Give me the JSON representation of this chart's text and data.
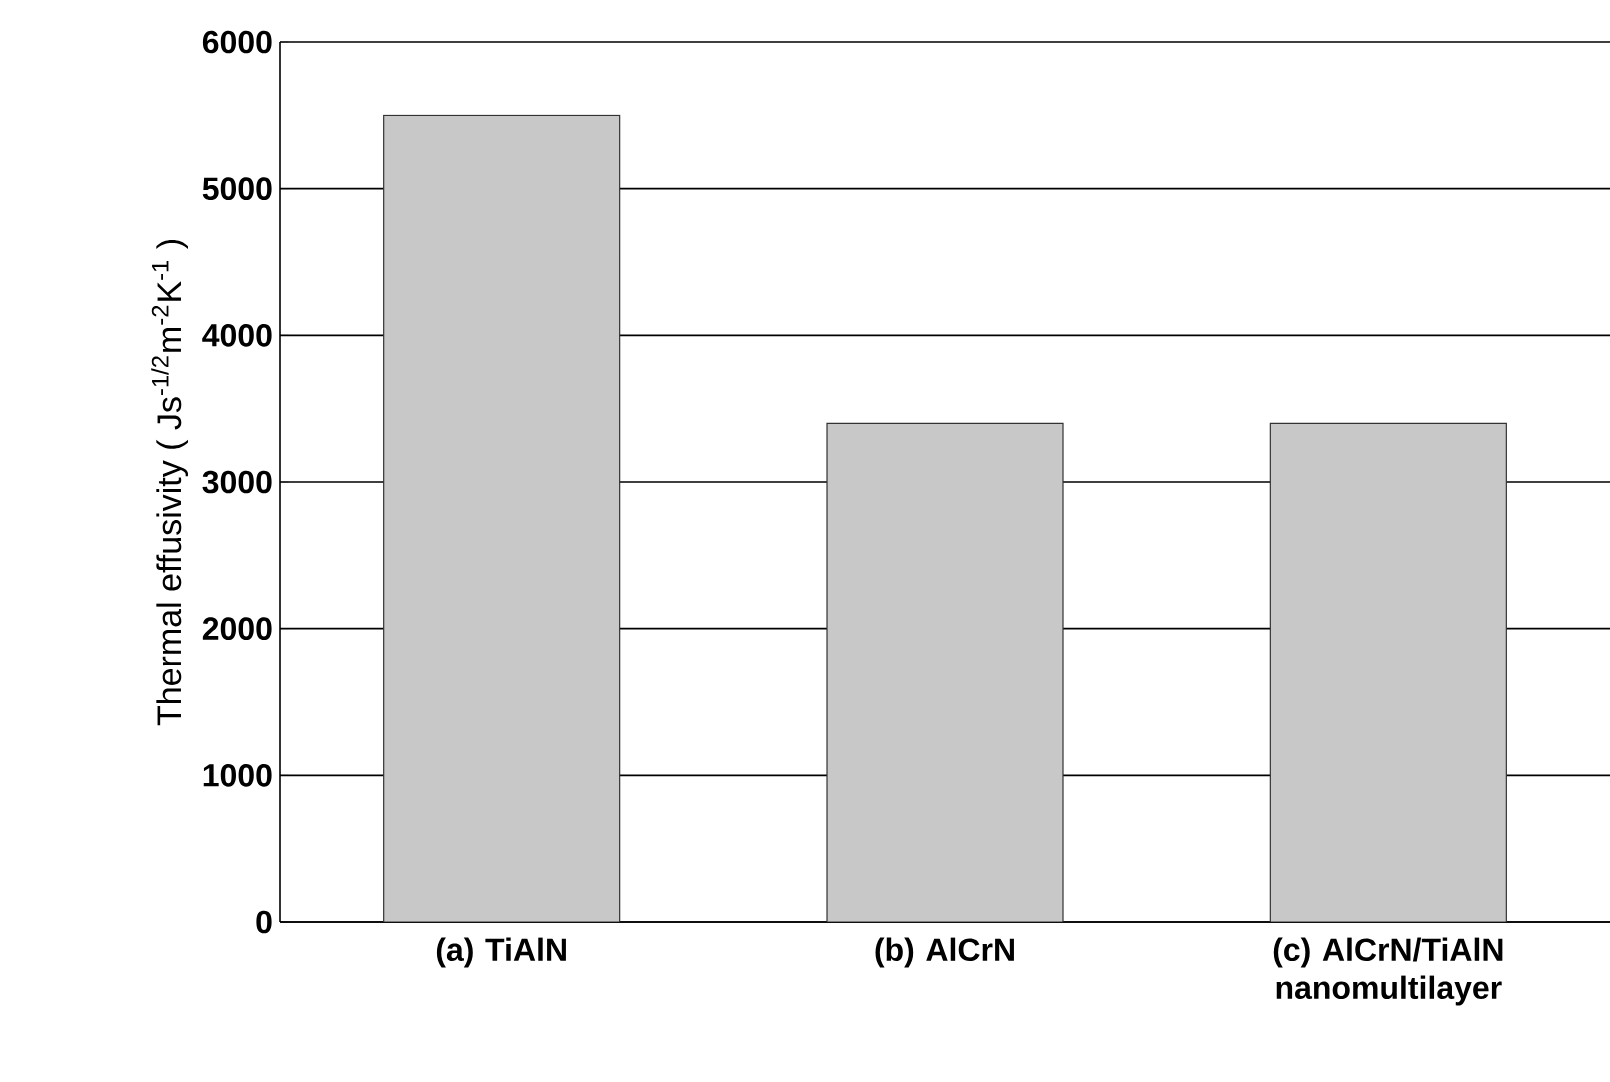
{
  "chart_data": {
    "type": "bar",
    "ylabel": "Thermal effusivity ( Js$^{-1/2}$m$^{-2}$K$^{-1}$ )",
    "categories": [
      "(a) TiAlN",
      "(b) AlCrN",
      "(c) AlCrN/TiAlN nanomultilayer"
    ],
    "values": [
      5500,
      3400,
      3400
    ],
    "color": "#c8c8c8",
    "ylim": [
      0,
      6000
    ],
    "yticks": [
      0,
      1000,
      2000,
      3000,
      4000,
      5000,
      6000
    ],
    "grid": "y"
  }
}
